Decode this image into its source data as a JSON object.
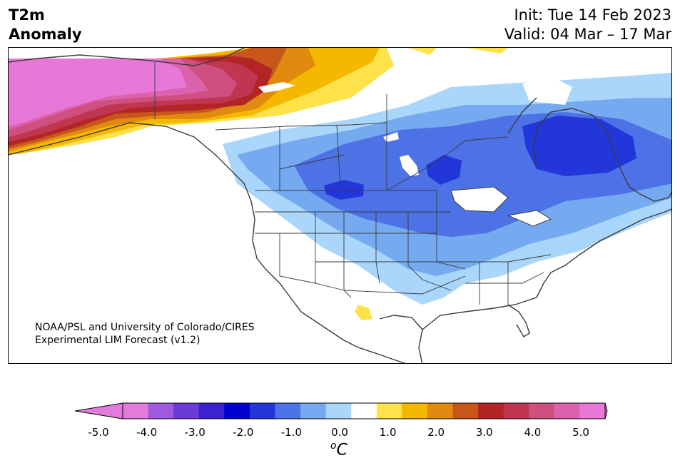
{
  "header": {
    "variable": "T2m",
    "variable_sub": "Anomaly",
    "init": "Init: Tue 14 Feb 2023",
    "valid": "Valid: 04 Mar – 17 Mar"
  },
  "credit": {
    "line1": "NOAA/PSL and University of Colorado/CIRES",
    "line2": "Experimental LIM Forecast (v1.2)"
  },
  "colorbar": {
    "unit_main": "C",
    "unit_sup": "o",
    "ticks": [
      "-5.0",
      "-4.0",
      "-3.0",
      "-2.0",
      "-1.0",
      "0.0",
      "1.0",
      "2.0",
      "3.0",
      "4.0",
      "5.0"
    ],
    "levels": [
      -5.0,
      -4.5,
      -4.0,
      -3.5,
      -3.0,
      -2.5,
      -2.0,
      -1.5,
      -1.0,
      -0.5,
      0.5,
      1.0,
      1.5,
      2.0,
      2.5,
      3.0,
      3.5,
      4.0,
      4.5,
      5.0
    ],
    "colors": [
      "#e37bdd",
      "#a05ae0",
      "#6a3bd9",
      "#3a22cf",
      "#0000cc",
      "#2236d9",
      "#4c72e6",
      "#75aaf0",
      "#a9d6fa",
      "#ffffff",
      "#ffe24a",
      "#f4b800",
      "#e08a10",
      "#c8561a",
      "#b32424",
      "#c03650",
      "#cf4f7f",
      "#dc62ad",
      "#e878d8"
    ],
    "under_color": "#e37bdd",
    "over_color": "#e878d8"
  },
  "map_features": {
    "region": "North America",
    "anomalies": [
      {
        "region": "Alaska",
        "sign": "warm",
        "peak_c": 5.0
      },
      {
        "region": "Yukon / NW Territories",
        "sign": "warm",
        "peak_c": 3.0
      },
      {
        "region": "Hudson Bay / Quebec",
        "sign": "cold",
        "peak_c": -2.5
      },
      {
        "region": "Northern Plains / Prairies",
        "sign": "cold",
        "peak_c": -2.5
      },
      {
        "region": "Northern Mexico",
        "sign": "warm",
        "peak_c": 0.5
      }
    ]
  }
}
